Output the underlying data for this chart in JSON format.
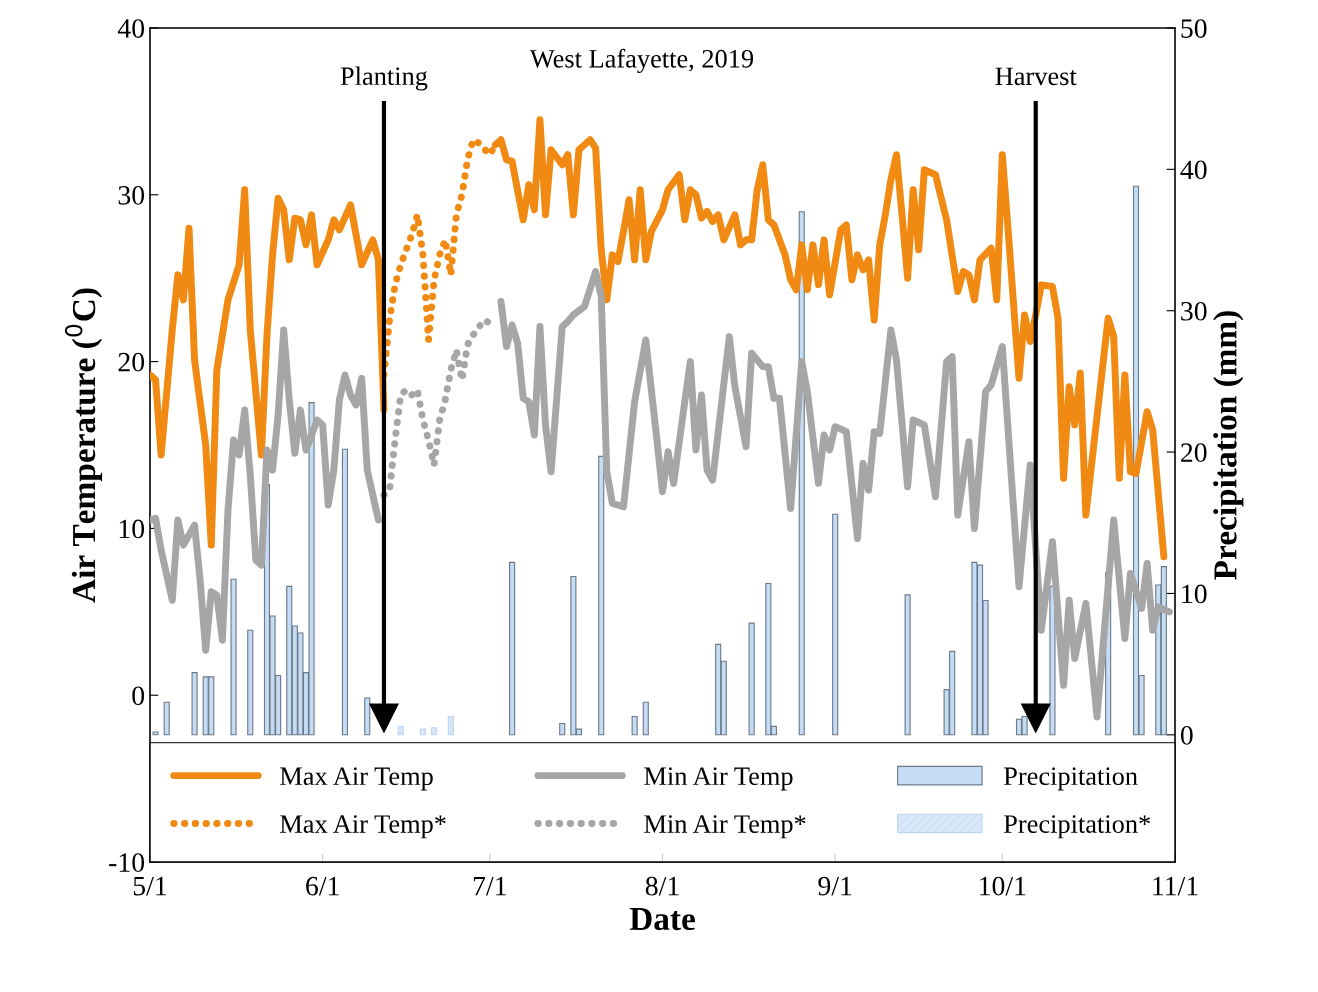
{
  "chart_data": {
    "type": "line",
    "title": "West Lafayette, 2019",
    "xlabel": "Date",
    "ylabel": "Air Temperature ($^{0}$C)",
    "y2label": "Precipitation (mm)",
    "xlim": [
      "2019-05-01",
      "2019-11-01"
    ],
    "xticks": [
      {
        "value": "2019-05-01",
        "label": "5/1"
      },
      {
        "value": "2019-06-01",
        "label": "6/1"
      },
      {
        "value": "2019-07-01",
        "label": "7/1"
      },
      {
        "value": "2019-08-01",
        "label": "8/1"
      },
      {
        "value": "2019-09-01",
        "label": "9/1"
      },
      {
        "value": "2019-10-01",
        "label": "10/1"
      },
      {
        "value": "2019-11-01",
        "label": "11/1"
      }
    ],
    "ylim": [
      -10,
      40
    ],
    "yticks": [
      -10,
      0,
      10,
      20,
      30,
      40
    ],
    "y2lim": [
      -9,
      50
    ],
    "y2ticks": [
      0,
      10,
      20,
      30,
      40,
      50
    ],
    "grid": false,
    "legend": "bottom",
    "ref_lines": [
      {
        "axis": "x",
        "value": "2019-06-12",
        "label": "Planting"
      },
      {
        "axis": "x",
        "value": "2019-10-07",
        "label": "Harvest"
      }
    ],
    "series": [
      {
        "name": "Max Air Temp",
        "line_style": "solid",
        "color": "#f08a12",
        "x": [
          "2019-05-01",
          "2019-05-02",
          "2019-05-03",
          "2019-05-05",
          "2019-05-06",
          "2019-05-07",
          "2019-05-08",
          "2019-05-09",
          "2019-05-11",
          "2019-05-12",
          "2019-05-13",
          "2019-05-15",
          "2019-05-17",
          "2019-05-18",
          "2019-05-19",
          "2019-05-21",
          "2019-05-22",
          "2019-05-23",
          "2019-05-24",
          "2019-05-25",
          "2019-05-26",
          "2019-05-27",
          "2019-05-28",
          "2019-05-29",
          "2019-05-30",
          "2019-05-31",
          "2019-06-02",
          "2019-06-03",
          "2019-06-04",
          "2019-06-06",
          "2019-06-07",
          "2019-06-08",
          "2019-06-10",
          "2019-06-11",
          "2019-06-12",
          "2019-06-20",
          "2019-07-02",
          "2019-07-03",
          "2019-07-04",
          "2019-07-05",
          "2019-07-07",
          "2019-07-08",
          "2019-07-09",
          "2019-07-10",
          "2019-07-11",
          "2019-07-12",
          "2019-07-14",
          "2019-07-15",
          "2019-07-16",
          "2019-07-17",
          "2019-07-19",
          "2019-07-20",
          "2019-07-21",
          "2019-07-22",
          "2019-07-23",
          "2019-07-24",
          "2019-07-25",
          "2019-07-26",
          "2019-07-27",
          "2019-07-28",
          "2019-07-29",
          "2019-07-30",
          "2019-08-01",
          "2019-08-02",
          "2019-08-04",
          "2019-08-05",
          "2019-08-06",
          "2019-08-07",
          "2019-08-08",
          "2019-08-09",
          "2019-08-10",
          "2019-08-11",
          "2019-08-12",
          "2019-08-14",
          "2019-08-15",
          "2019-08-16",
          "2019-08-17",
          "2019-08-18",
          "2019-08-19",
          "2019-08-20",
          "2019-08-21",
          "2019-08-23",
          "2019-08-24",
          "2019-08-25",
          "2019-08-26",
          "2019-08-27",
          "2019-08-28",
          "2019-08-29",
          "2019-08-30",
          "2019-08-31",
          "2019-09-02",
          "2019-09-03",
          "2019-09-04",
          "2019-09-05",
          "2019-09-06",
          "2019-09-07",
          "2019-09-08",
          "2019-09-09",
          "2019-09-10",
          "2019-09-11",
          "2019-09-12",
          "2019-09-13",
          "2019-09-14",
          "2019-09-15",
          "2019-09-16",
          "2019-09-17",
          "2019-09-19",
          "2019-09-21",
          "2019-09-23",
          "2019-09-24",
          "2019-09-25",
          "2019-09-26",
          "2019-09-27",
          "2019-09-29",
          "2019-09-30",
          "2019-10-01",
          "2019-10-02",
          "2019-10-04",
          "2019-10-05",
          "2019-10-06",
          "2019-10-07",
          "2019-10-08",
          "2019-10-10",
          "2019-10-11",
          "2019-10-12",
          "2019-10-13",
          "2019-10-14",
          "2019-10-15",
          "2019-10-16",
          "2019-10-20",
          "2019-10-21",
          "2019-10-22",
          "2019-10-23",
          "2019-10-24",
          "2019-10-25",
          "2019-10-27",
          "2019-10-28",
          "2019-10-30"
        ],
        "values": [
          19.2,
          18.9,
          14.4,
          21.9,
          25.2,
          23.7,
          28,
          20.1,
          15,
          9,
          19.5,
          23.7,
          25.8,
          30.3,
          21.9,
          14.4,
          21.6,
          26.4,
          29.8,
          29.1,
          26.1,
          28.6,
          28.5,
          27,
          28.8,
          25.8,
          27.3,
          28.5,
          27.9,
          29.4,
          27.6,
          25.8,
          27.3,
          26.1,
          17.1,
          null,
          33,
          33.3,
          32.1,
          32,
          28.5,
          30.6,
          29.1,
          34.5,
          28.8,
          32.7,
          31.8,
          32.4,
          28.8,
          32.7,
          33.3,
          32.8,
          26.7,
          23.7,
          26.4,
          26,
          27.8,
          29.7,
          26.1,
          30.3,
          26.1,
          27.8,
          29.1,
          30.3,
          31.2,
          28.5,
          30.3,
          30,
          28.6,
          29,
          28.4,
          28.8,
          27.3,
          28.8,
          27,
          27.3,
          27.3,
          30.3,
          31.8,
          28.5,
          28.2,
          26.4,
          24.9,
          24.3,
          27,
          24.3,
          27,
          24.6,
          27.3,
          24,
          27.9,
          28.2,
          24.9,
          26.4,
          25.5,
          26.1,
          22.5,
          27,
          28.8,
          30.9,
          32.4,
          28.8,
          25,
          30.3,
          26.7,
          31.5,
          31.2,
          28.5,
          24.2,
          25.4,
          25.2,
          23.7,
          26.1,
          26.8,
          23.7,
          32.4,
          28.1,
          19,
          22.8,
          21.2,
          22.8,
          24.6,
          24.5,
          22.6,
          13,
          18.5,
          16.2,
          19.3,
          10.8,
          22.6,
          21.5,
          13,
          19.2,
          13.4,
          13.3,
          17,
          15.9,
          8.3
        ]
      },
      {
        "name": "Min Air Temp",
        "line_style": "solid",
        "color": "#a6a6a6",
        "x": [
          "2019-05-01",
          "2019-05-02",
          "2019-05-03",
          "2019-05-05",
          "2019-05-06",
          "2019-05-07",
          "2019-05-08",
          "2019-05-09",
          "2019-05-10",
          "2019-05-11",
          "2019-05-12",
          "2019-05-13",
          "2019-05-14",
          "2019-05-15",
          "2019-05-16",
          "2019-05-17",
          "2019-05-18",
          "2019-05-19",
          "2019-05-20",
          "2019-05-21",
          "2019-05-22",
          "2019-05-23",
          "2019-05-24",
          "2019-05-25",
          "2019-05-26",
          "2019-05-27",
          "2019-05-28",
          "2019-05-29",
          "2019-05-31",
          "2019-06-01",
          "2019-06-02",
          "2019-06-03",
          "2019-06-04",
          "2019-06-05",
          "2019-06-06",
          "2019-06-07",
          "2019-06-08",
          "2019-06-09",
          "2019-06-11",
          "2019-06-20",
          "2019-07-03",
          "2019-07-04",
          "2019-07-05",
          "2019-07-06",
          "2019-07-07",
          "2019-07-08",
          "2019-07-09",
          "2019-07-10",
          "2019-07-11",
          "2019-07-12",
          "2019-07-14",
          "2019-07-15",
          "2019-07-16",
          "2019-07-18",
          "2019-07-20",
          "2019-07-21",
          "2019-07-22",
          "2019-07-23",
          "2019-07-25",
          "2019-07-27",
          "2019-07-29",
          "2019-07-31",
          "2019-08-01",
          "2019-08-02",
          "2019-08-03",
          "2019-08-05",
          "2019-08-06",
          "2019-08-07",
          "2019-08-08",
          "2019-08-09",
          "2019-08-10",
          "2019-08-13",
          "2019-08-14",
          "2019-08-16",
          "2019-08-17",
          "2019-08-19",
          "2019-08-20",
          "2019-08-21",
          "2019-08-22",
          "2019-08-24",
          "2019-08-26",
          "2019-08-27",
          "2019-08-29",
          "2019-08-30",
          "2019-08-31",
          "2019-09-01",
          "2019-09-03",
          "2019-09-05",
          "2019-09-06",
          "2019-09-07",
          "2019-09-08",
          "2019-09-09",
          "2019-09-11",
          "2019-09-12",
          "2019-09-14",
          "2019-09-15",
          "2019-09-17",
          "2019-09-19",
          "2019-09-21",
          "2019-09-22",
          "2019-09-23",
          "2019-09-25",
          "2019-09-26",
          "2019-09-28",
          "2019-09-29",
          "2019-10-01",
          "2019-10-04",
          "2019-10-06",
          "2019-10-08",
          "2019-10-10",
          "2019-10-12",
          "2019-10-13",
          "2019-10-14",
          "2019-10-16",
          "2019-10-18",
          "2019-10-21",
          "2019-10-23",
          "2019-10-24",
          "2019-10-26",
          "2019-10-27",
          "2019-10-28",
          "2019-10-29",
          "2019-10-31"
        ],
        "values": [
          10.5,
          10.6,
          8.7,
          5.7,
          10.5,
          9,
          9.6,
          10.2,
          6.9,
          2.7,
          6.2,
          6,
          3.3,
          11.1,
          15.3,
          14.4,
          17.1,
          13.2,
          8.1,
          7.8,
          14.7,
          13.5,
          16.8,
          21.9,
          17.7,
          14.5,
          17.1,
          14.7,
          16.5,
          16.2,
          11.4,
          13.5,
          17.7,
          19.2,
          18,
          17.4,
          19,
          13.5,
          10.5,
          null,
          23.6,
          20.9,
          22.2,
          21.1,
          17.8,
          17.6,
          15.6,
          22.1,
          16.2,
          13.4,
          22.1,
          22.4,
          22.8,
          23.3,
          25.4,
          23.9,
          13.4,
          11.5,
          11.3,
          17.6,
          21.3,
          15.3,
          12.2,
          14.6,
          12.7,
          17.6,
          20,
          14.7,
          18,
          13.5,
          12.9,
          21.5,
          18.5,
          14.9,
          20.5,
          19.7,
          19.7,
          17.8,
          17.8,
          11.2,
          20,
          18.2,
          12.7,
          15.6,
          14.7,
          16.1,
          15.8,
          9.4,
          13.9,
          12.3,
          15.8,
          15.7,
          21.9,
          20.1,
          12.5,
          16.5,
          16.2,
          11.9,
          20,
          20.3,
          10.8,
          15.2,
          10,
          18.2,
          18.6,
          20.9,
          6.5,
          13.8,
          3.9,
          9.2,
          0.6,
          5.7,
          2.2,
          5.5,
          -1.3,
          10.5,
          3.4,
          7.3,
          5.2,
          7.9,
          3.9,
          5.3,
          5
        ]
      },
      {
        "name": "Precipitation",
        "type": "bar",
        "axis": "y2",
        "line_style": "solid",
        "color": "#c5dcf5",
        "x": [
          "2019-05-02",
          "2019-05-04",
          "2019-05-09",
          "2019-05-11",
          "2019-05-12",
          "2019-05-16",
          "2019-05-19",
          "2019-05-22",
          "2019-05-23",
          "2019-05-24",
          "2019-05-26",
          "2019-05-27",
          "2019-05-28",
          "2019-05-29",
          "2019-05-30",
          "2019-06-05",
          "2019-06-09",
          "2019-07-05",
          "2019-07-14",
          "2019-07-16",
          "2019-07-17",
          "2019-07-21",
          "2019-07-27",
          "2019-07-29",
          "2019-08-11",
          "2019-08-12",
          "2019-08-17",
          "2019-08-20",
          "2019-08-21",
          "2019-08-26",
          "2019-09-01",
          "2019-09-14",
          "2019-09-21",
          "2019-09-22",
          "2019-09-26",
          "2019-09-27",
          "2019-09-28",
          "2019-10-04",
          "2019-10-05",
          "2019-10-10",
          "2019-10-20",
          "2019-10-25",
          "2019-10-26",
          "2019-10-29",
          "2019-10-30"
        ],
        "values": [
          0.2,
          2.3,
          4.4,
          4.1,
          4.1,
          11,
          7.4,
          17.7,
          8.4,
          4.2,
          10.5,
          7.7,
          7.2,
          4.4,
          23.5,
          20.2,
          2.6,
          12.2,
          0.8,
          11.2,
          0.4,
          19.7,
          1.3,
          2.3,
          6.4,
          5.2,
          7.9,
          10.7,
          0.6,
          37,
          15.6,
          9.9,
          3.2,
          5.9,
          12.2,
          12,
          9.5,
          1.1,
          1.3,
          10.5,
          11.5,
          38.8,
          4.2,
          10.6,
          11.9
        ]
      },
      {
        "name": "Max Air Temp*",
        "line_style": "dotted",
        "color": "#f08a12",
        "x": [
          "2019-06-12",
          "2019-06-13",
          "2019-06-14",
          "2019-06-15",
          "2019-06-16",
          "2019-06-17",
          "2019-06-18",
          "2019-06-19",
          "2019-06-20",
          "2019-06-21",
          "2019-06-22",
          "2019-06-23",
          "2019-06-24",
          "2019-06-25",
          "2019-06-26",
          "2019-06-27",
          "2019-06-28",
          "2019-06-29",
          "2019-07-01",
          "2019-07-02"
        ],
        "values": [
          19.2,
          22.5,
          24.6,
          25.8,
          26.7,
          27.6,
          28.8,
          26.4,
          21.3,
          24.9,
          26.4,
          27.3,
          25.2,
          28.8,
          30,
          32.1,
          33.3,
          33.1,
          32.4,
          33
        ]
      },
      {
        "name": "Min Air Temp*",
        "line_style": "dotted",
        "color": "#a6a6a6",
        "x": [
          "2019-06-12",
          "2019-06-13",
          "2019-06-14",
          "2019-06-15",
          "2019-06-16",
          "2019-06-17",
          "2019-06-18",
          "2019-06-19",
          "2019-06-20",
          "2019-06-21",
          "2019-06-22",
          "2019-06-23",
          "2019-06-24",
          "2019-06-25",
          "2019-06-26",
          "2019-06-27",
          "2019-06-28",
          "2019-06-30",
          "2019-07-02"
        ],
        "values": [
          12,
          12.3,
          15.3,
          18,
          18.3,
          18,
          18.3,
          16.5,
          15.3,
          13.8,
          16.5,
          17.7,
          19.5,
          20.7,
          18.9,
          21,
          21.6,
          22.5,
          22.1
        ]
      },
      {
        "name": "Precipitation*",
        "type": "bar",
        "axis": "y2",
        "line_style": "dotted",
        "color": "#c5dcf5",
        "x": [
          "2019-06-15",
          "2019-06-19",
          "2019-06-21",
          "2019-06-24"
        ],
        "values": [
          0.6,
          0.4,
          0.5,
          1.3
        ]
      }
    ]
  }
}
